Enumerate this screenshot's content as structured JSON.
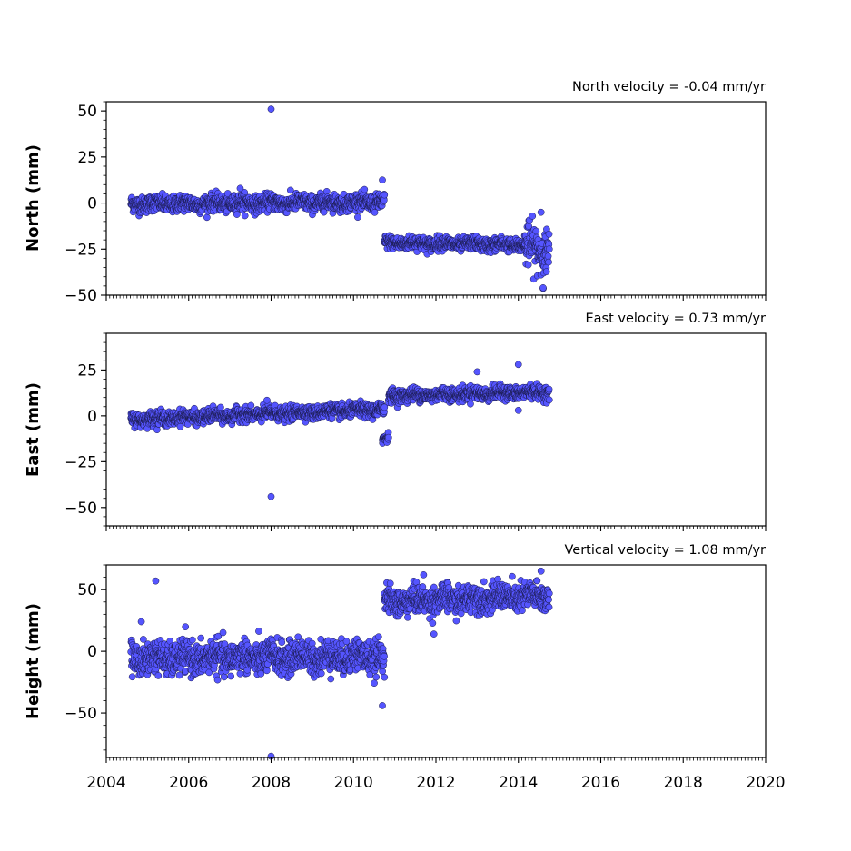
{
  "chart_data": [
    {
      "type": "scatter",
      "title": "North velocity = -0.04 mm/yr",
      "ylabel": "North (mm)",
      "xlim": [
        2004,
        2020
      ],
      "ylim": [
        -50,
        55
      ],
      "yticks": [
        50,
        25,
        0,
        -25,
        -50
      ],
      "ytick_labels": [
        "50",
        "25",
        "0",
        "−25",
        "−50"
      ],
      "series": [
        {
          "segments": [
            {
              "x_start": 2004.6,
              "x_end": 2010.75,
              "y_start": -0.5,
              "y_end": 0.5,
              "scatter": 2.2
            },
            {
              "x_start": 2010.75,
              "x_end": 2014.7,
              "y_start": -21.5,
              "y_end": -23,
              "scatter": 1.8
            },
            {
              "x_start": 2014.15,
              "x_end": 2014.75,
              "y_start": -24,
              "y_end": -26,
              "scatter": 6
            }
          ],
          "outliers": [
            [
              2008.0,
              51
            ],
            [
              2007.25,
              8
            ],
            [
              2010.7,
              12.5
            ],
            [
              2014.55,
              -5
            ],
            [
              2014.6,
              -46
            ]
          ]
        }
      ]
    },
    {
      "type": "scatter",
      "title": "East velocity = 0.73 mm/yr",
      "ylabel": "East (mm)",
      "xlim": [
        2004,
        2020
      ],
      "ylim": [
        -60,
        45
      ],
      "yticks": [
        25,
        0,
        -25,
        -50
      ],
      "ytick_labels": [
        "25",
        "0",
        "−25",
        "−50"
      ],
      "series": [
        {
          "segments": [
            {
              "x_start": 2004.6,
              "x_end": 2010.75,
              "y_start": -2,
              "y_end": 3.5,
              "scatter": 1.8
            },
            {
              "x_start": 2010.7,
              "x_end": 2010.85,
              "y_start": -13,
              "y_end": -12,
              "scatter": 1.2
            },
            {
              "x_start": 2010.85,
              "x_end": 2014.75,
              "y_start": 11,
              "y_end": 13,
              "scatter": 1.8
            }
          ],
          "outliers": [
            [
              2008.0,
              -44
            ],
            [
              2013.0,
              24
            ],
            [
              2014.0,
              28
            ],
            [
              2014.0,
              3
            ],
            [
              2007.9,
              8.5
            ]
          ]
        }
      ]
    },
    {
      "type": "scatter",
      "title": "Vertical velocity = 1.08 mm/yr",
      "ylabel": "Height (mm)",
      "xlim": [
        2004,
        2020
      ],
      "ylim": [
        -86,
        70
      ],
      "yticks": [
        50,
        0,
        -50
      ],
      "ytick_labels": [
        "50",
        "0",
        "−50"
      ],
      "series": [
        {
          "segments": [
            {
              "x_start": 2004.6,
              "x_end": 2010.75,
              "y_start": -6,
              "y_end": -4,
              "scatter": 6.5
            },
            {
              "x_start": 2010.75,
              "x_end": 2014.75,
              "y_start": 40,
              "y_end": 45,
              "scatter": 5.5
            }
          ],
          "outliers": [
            [
              2005.2,
              57
            ],
            [
              2004.85,
              24
            ],
            [
              2010.7,
              -44
            ],
            [
              2008.0,
              -85
            ],
            [
              2011.95,
              14
            ],
            [
              2014.55,
              65
            ],
            [
              2011.7,
              62
            ]
          ]
        }
      ]
    }
  ],
  "xticks": [
    2004,
    2006,
    2008,
    2010,
    2012,
    2014,
    2016,
    2018,
    2020
  ],
  "xtick_labels": [
    "2004",
    "2006",
    "2008",
    "2010",
    "2012",
    "2014",
    "2016",
    "2018",
    "2020"
  ],
  "colors": {
    "marker_fill": "#5555ff",
    "marker_edge": "#1a1a4d",
    "axis": "#000000"
  }
}
